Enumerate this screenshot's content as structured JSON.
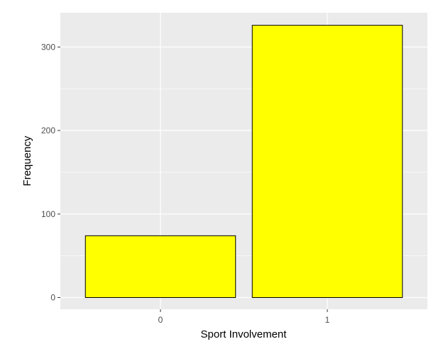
{
  "chart_data": {
    "type": "bar",
    "title": "",
    "xlabel": "Sport Involvement",
    "ylabel": "Frequency",
    "categories": [
      "0",
      "1"
    ],
    "values": [
      74,
      326
    ],
    "ylim": [
      -14,
      341
    ],
    "yticks": [
      0,
      100,
      200,
      300
    ],
    "grid": true,
    "colors": {
      "panel": "#EBEBEB",
      "grid_major": "#FFFFFF",
      "bar_fill": "#FFFF00",
      "bar_stroke": "#000000",
      "tick_text": "#4D4D4D"
    }
  }
}
